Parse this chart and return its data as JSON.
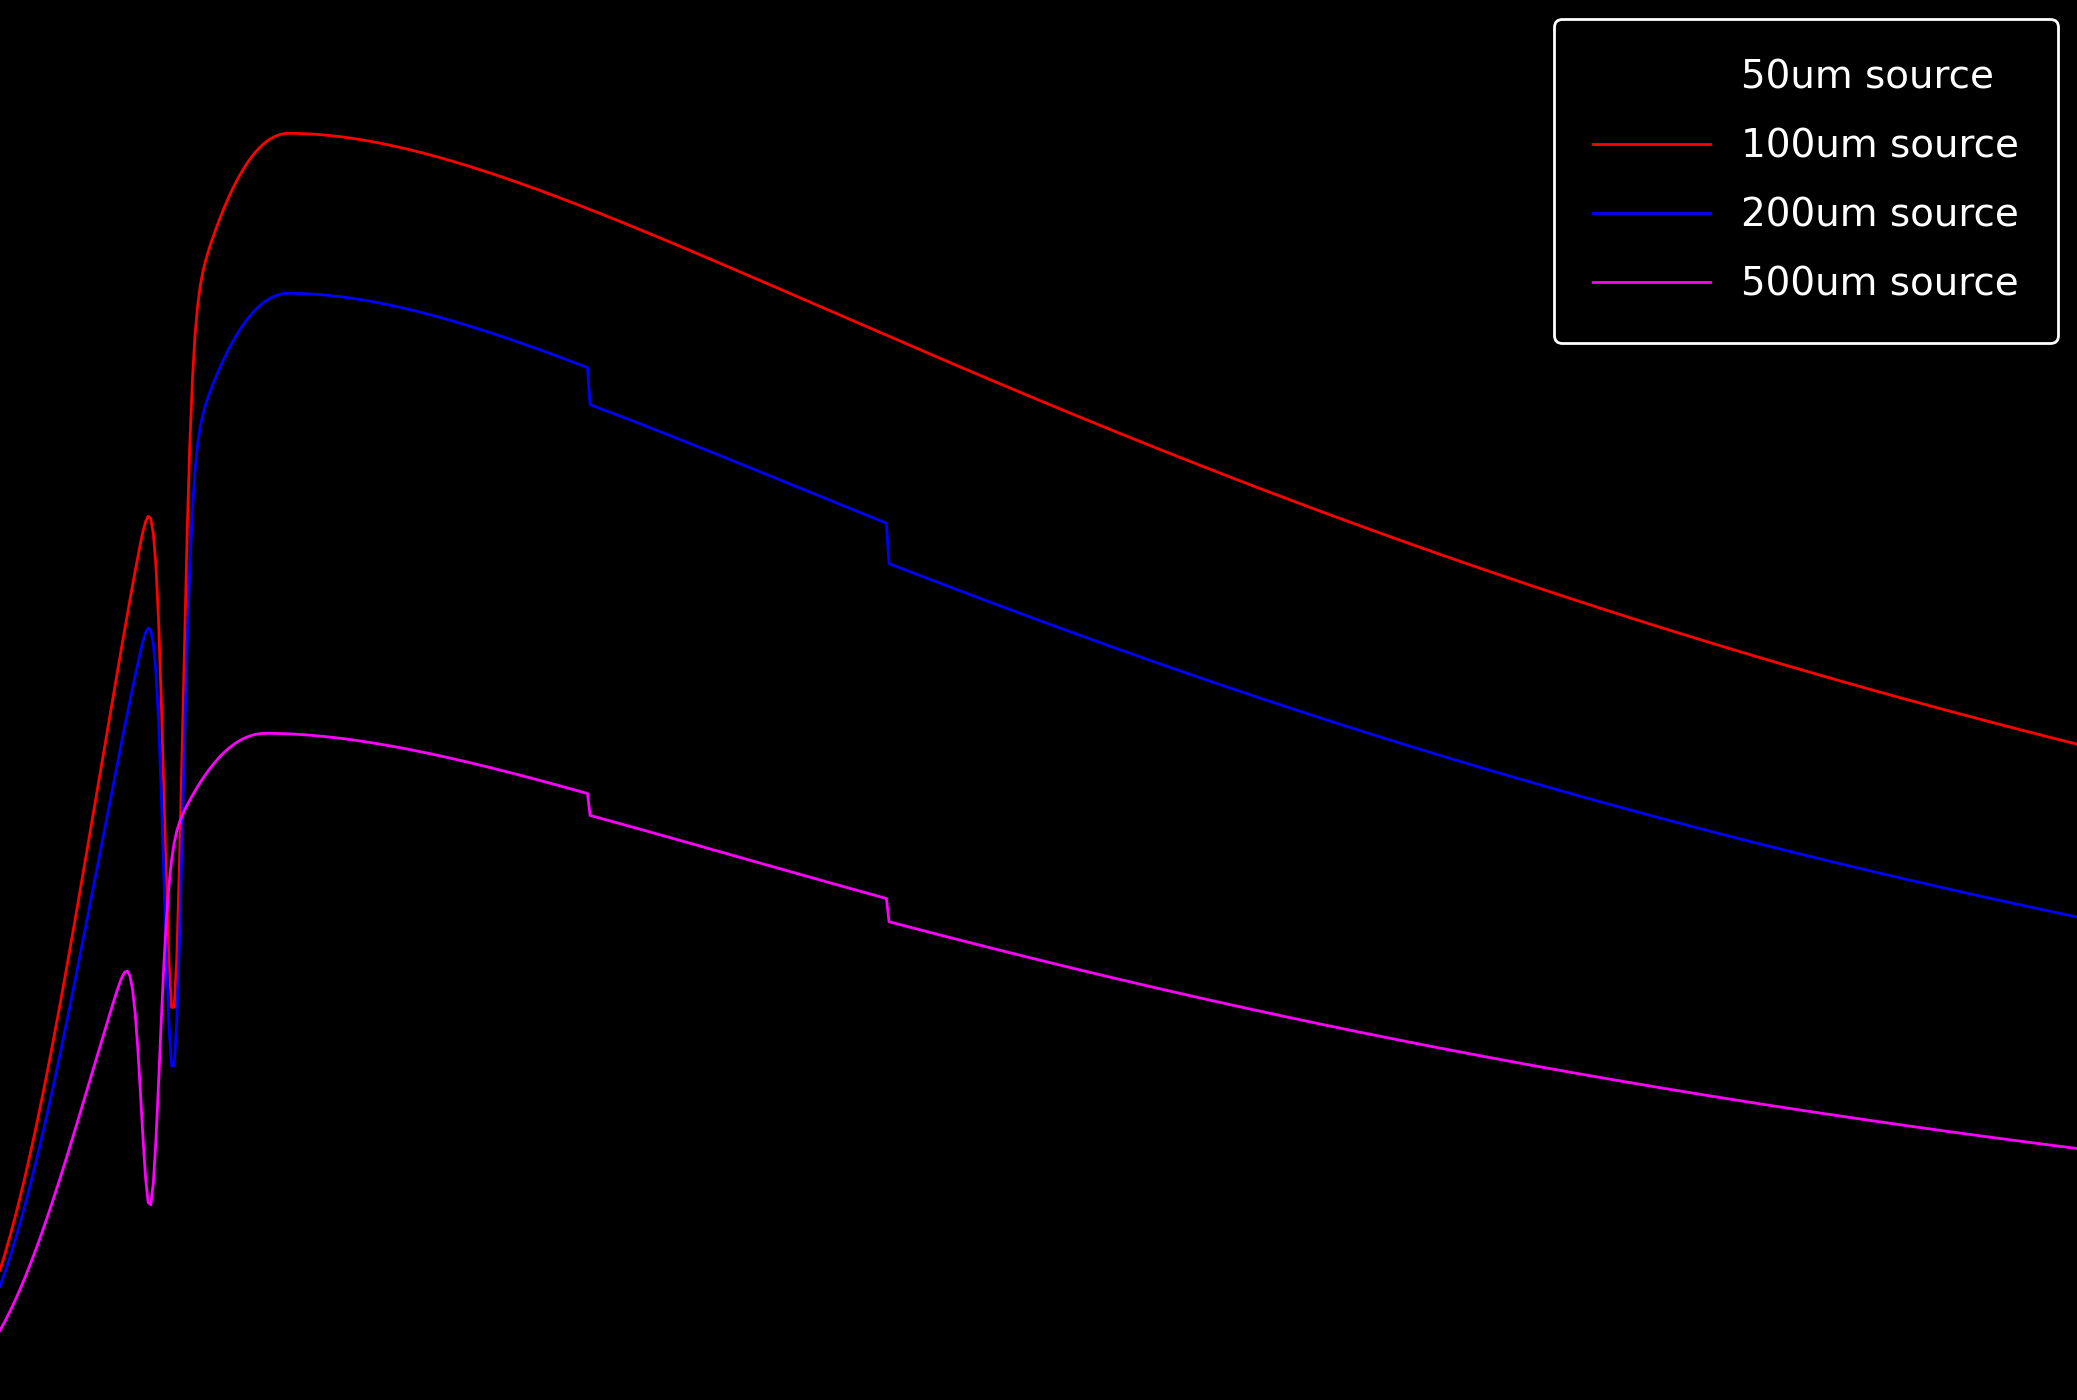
{
  "background_color": "#000000",
  "axes_face_color": "#000000",
  "text_color": "#000000",
  "grid": false,
  "title": "",
  "xlabel": "",
  "ylabel": "",
  "series": [
    {
      "label": "50um source",
      "color": "#000000",
      "linewidth": 2.0
    },
    {
      "label": "100um source",
      "color": "#ff0000",
      "linewidth": 2.0
    },
    {
      "label": "200um source",
      "color": "#0000ff",
      "linewidth": 2.0
    },
    {
      "label": "500um source",
      "color": "#ff00ff",
      "linewidth": 2.0
    }
  ],
  "figsize": [
    20.77,
    14.0
  ],
  "dpi": 100,
  "legend_fontsize": 28,
  "legend_face_color": "#000000",
  "legend_edge_color": "#ffffff",
  "legend_text_color": "#ffffff"
}
